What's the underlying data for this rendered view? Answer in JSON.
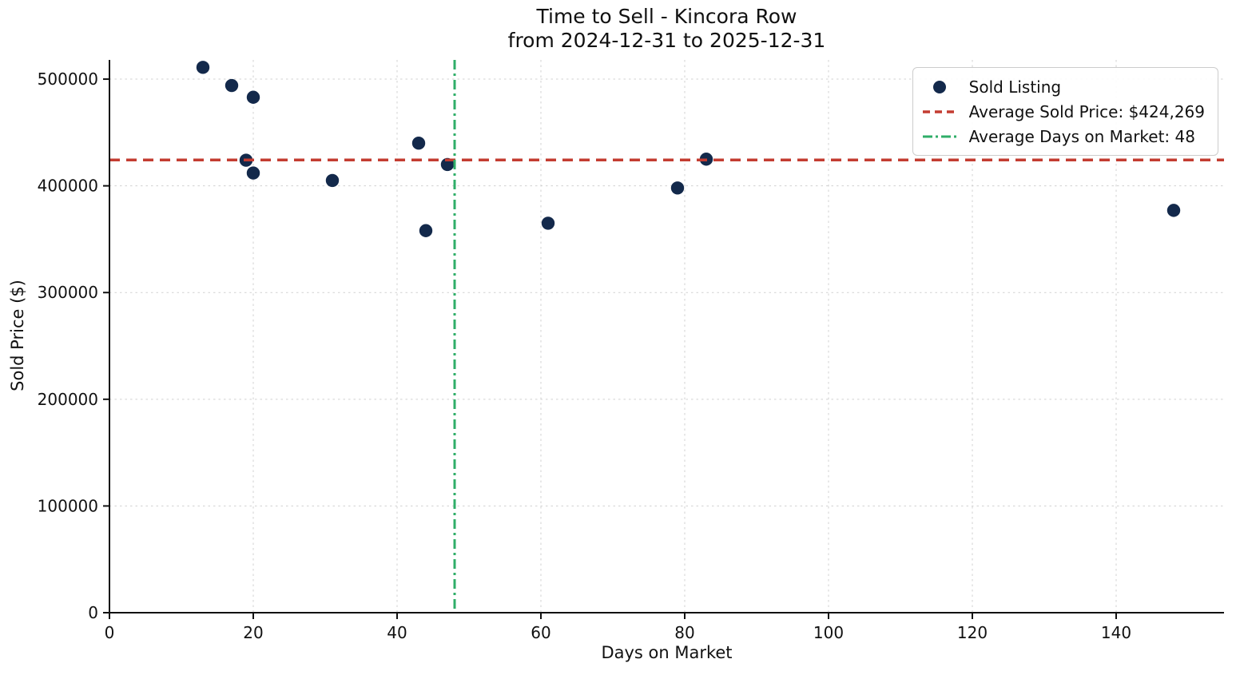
{
  "figure": {
    "background": "#ffffff"
  },
  "chart_data": {
    "type": "scatter",
    "title": "Time to Sell - Kincora Row",
    "subtitle": "from 2024-12-31 to 2025-12-31",
    "xlabel": "Days on Market",
    "ylabel": "Sold Price ($)",
    "xlim": [
      0,
      155
    ],
    "ylim": [
      0,
      518000
    ],
    "x_ticks": [
      0,
      20,
      40,
      60,
      80,
      100,
      120,
      140
    ],
    "y_ticks": [
      0,
      100000,
      200000,
      300000,
      400000,
      500000
    ],
    "grid": true,
    "grid_color": "#cccccc",
    "series": [
      {
        "name": "Sold Listing",
        "marker": "circle",
        "color": "#13294b",
        "points": [
          [
            13,
            511000
          ],
          [
            17,
            494000
          ],
          [
            20,
            483000
          ],
          [
            19,
            424000
          ],
          [
            20,
            412000
          ],
          [
            31,
            405000
          ],
          [
            43,
            440000
          ],
          [
            47,
            420000
          ],
          [
            44,
            358000
          ],
          [
            61,
            365000
          ],
          [
            79,
            398000
          ],
          [
            83,
            425000
          ],
          [
            148,
            377000
          ]
        ]
      }
    ],
    "reference_lines": [
      {
        "name": "average-sold-price-line",
        "label": "Average Sold Price: $424,269",
        "orientation": "horizontal",
        "value": 424269,
        "color": "#c33c31",
        "style": "dashed"
      },
      {
        "name": "average-days-on-market-line",
        "label": "Average Days on Market: 48",
        "orientation": "vertical",
        "value": 48,
        "color": "#2fae68",
        "style": "dashdot"
      }
    ],
    "legend": {
      "position": "upper-right",
      "entries": [
        {
          "swatch": "circle",
          "color": "#13294b",
          "label": "Sold Listing"
        },
        {
          "swatch": "dashed-line",
          "color": "#c33c31",
          "label": "Average Sold Price: $424,269"
        },
        {
          "swatch": "dashdot-line",
          "color": "#2fae68",
          "label": "Average Days on Market: 48"
        }
      ]
    }
  }
}
